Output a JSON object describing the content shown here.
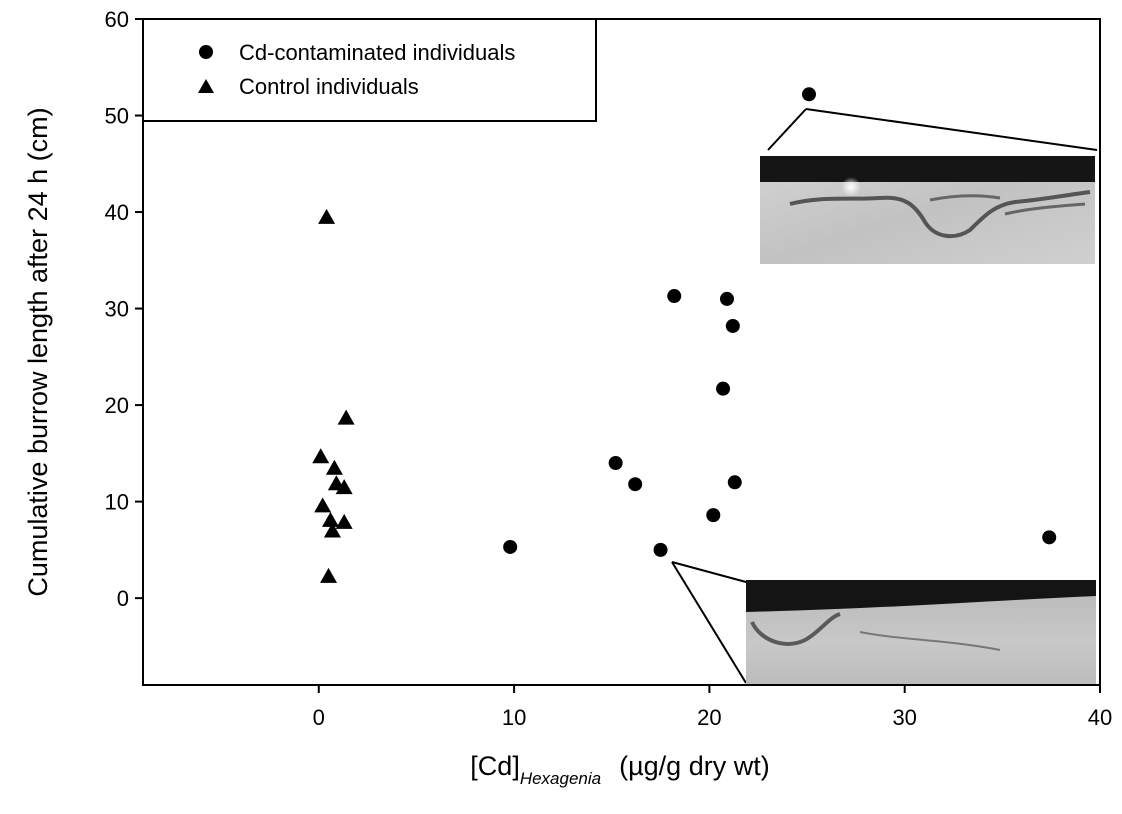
{
  "chart_data": {
    "type": "scatter",
    "xlabel": {
      "main": "[Cd]",
      "subscript": "Hexagenia",
      "units": "(µg/g dry wt)"
    },
    "ylabel": "Cumulative burrow length after 24 h  (cm)",
    "xlim": [
      -9,
      40
    ],
    "ylim": [
      -9,
      60
    ],
    "xticks": [
      "0",
      "10",
      "20",
      "30",
      "40"
    ],
    "yticks": [
      "0",
      "10",
      "20",
      "30",
      "40",
      "50",
      "60"
    ],
    "grid": false,
    "legend_position": "top-left",
    "series": [
      {
        "name": "Cd-contaminated individuals",
        "marker": "circle",
        "color": "#000000",
        "points": [
          [
            9.8,
            5.3
          ],
          [
            15.2,
            14.0
          ],
          [
            16.2,
            11.8
          ],
          [
            17.5,
            5.0
          ],
          [
            18.2,
            31.3
          ],
          [
            20.2,
            8.6
          ],
          [
            20.7,
            21.7
          ],
          [
            20.9,
            31.0
          ],
          [
            21.2,
            28.2
          ],
          [
            21.3,
            12.0
          ],
          [
            25.1,
            52.2
          ],
          [
            37.4,
            6.3
          ]
        ]
      },
      {
        "name": "Control individuals",
        "marker": "triangle",
        "color": "#000000",
        "points": [
          [
            0.4,
            39.4
          ],
          [
            1.4,
            18.6
          ],
          [
            0.1,
            14.6
          ],
          [
            0.8,
            13.4
          ],
          [
            0.9,
            11.8
          ],
          [
            1.3,
            11.4
          ],
          [
            0.2,
            9.5
          ],
          [
            0.6,
            8.0
          ],
          [
            1.3,
            7.8
          ],
          [
            0.7,
            6.9
          ],
          [
            0.5,
            2.2
          ]
        ]
      }
    ],
    "insets": [
      {
        "description": "burrow photograph",
        "linked_point": [
          25.1,
          52.2
        ]
      },
      {
        "description": "burrow photograph",
        "linked_point": [
          17.5,
          5.0
        ]
      }
    ]
  }
}
